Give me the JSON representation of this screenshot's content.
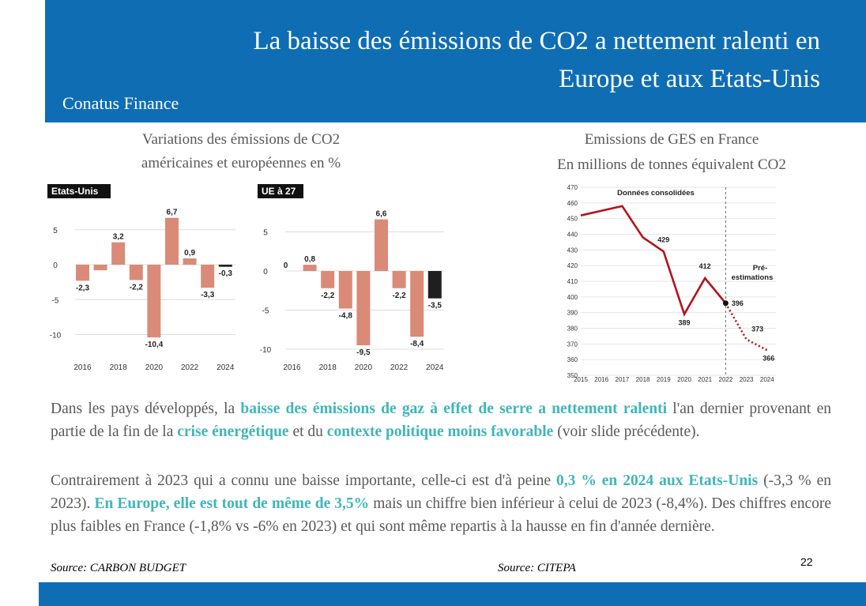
{
  "header": {
    "title": "La baisse des émissions de CO2 a nettement ralenti en Europe et aux Etats-Unis",
    "brand": "Conatus Finance"
  },
  "left_caption": {
    "line1": "Variations des émissions de CO2",
    "line2": "américaines et européennes en %"
  },
  "right_caption": {
    "line1": "Emissions de GES en France",
    "line2": "En millions de tonnes équivalent CO2"
  },
  "body": {
    "p1_a": "Dans les pays développés, la ",
    "p1_b": "baisse des émissions de gaz à effet de serre a nettement ralenti",
    "p1_c": " l'an dernier provenant en partie de la fin de la ",
    "p1_d": "crise énergétique",
    "p1_e": " et du ",
    "p1_f": "contexte politique moins favorable",
    "p1_g": " (voir slide précédente).",
    "p2_a": "Contrairement à 2023 qui a connu une baisse importante, celle-ci est d'à peine ",
    "p2_b": "0,3 % en 2024 aux Etats-Unis",
    "p2_c": " (-3,3 % en 2023). ",
    "p2_d": "En Europe, elle est tout de même de 3,5%",
    "p2_e": " mais un chiffre bien inférieur à celui de 2023 (-8,4%). Des chiffres encore plus faibles en France (-1,8% vs -6% en 2023) et qui sont même repartis à la hausse en fin d'année dernière."
  },
  "source_left": "Source: CARBON BUDGET",
  "source_right": "Source: CITEPA",
  "page_number": "22",
  "colors": {
    "header_bg": "#0f6db4",
    "bar_fill": "#d98b78",
    "bar_last": "#1f1f1f",
    "line_color": "#b5121b",
    "highlight": "#3fb6b9"
  },
  "chart_data": [
    {
      "type": "bar",
      "panel_label": "Etats-Unis",
      "categories": [
        "2016",
        "2017",
        "2018",
        "2019",
        "2020",
        "2021",
        "2022",
        "2023",
        "2024"
      ],
      "tick_labels_x": [
        "2016",
        "2018",
        "2020",
        "2022",
        "2024"
      ],
      "tick_labels_y": [
        "5",
        "0",
        "-5",
        "-10"
      ],
      "values": [
        -2.3,
        -0.8,
        3.2,
        -2.2,
        -10.4,
        6.7,
        0.9,
        -3.3,
        -0.3
      ],
      "data_labels": [
        "-2,3",
        "",
        "3,2",
        "-2,2",
        "-10,4",
        "6,7",
        "0,9",
        "-3,3",
        "-0,3"
      ],
      "ylim": [
        -12,
        8
      ]
    },
    {
      "type": "bar",
      "panel_label": "UE à 27",
      "categories": [
        "2016",
        "2017",
        "2018",
        "2019",
        "2020",
        "2021",
        "2022",
        "2023",
        "2024"
      ],
      "tick_labels_x": [
        "2016",
        "2018",
        "2020",
        "2022",
        "2024"
      ],
      "tick_labels_y": [
        "5",
        "0",
        "-5",
        "-10"
      ],
      "values": [
        0,
        0.8,
        -2.2,
        -4.8,
        -9.5,
        6.6,
        -2.2,
        -8.4,
        -3.5
      ],
      "data_labels": [
        "0",
        "0,8",
        "-2,2",
        "-4,8",
        "-9,5",
        "6,6",
        "-2,2",
        "-8,4",
        "-3,5"
      ],
      "ylim": [
        -11,
        8
      ]
    },
    {
      "type": "line",
      "x": [
        "2015",
        "2016",
        "2017",
        "2018",
        "2019",
        "2020",
        "2021",
        "2022",
        "2023",
        "2024"
      ],
      "y": [
        452,
        455,
        458,
        438,
        429,
        389,
        412,
        396,
        373,
        366
      ],
      "point_labels": {
        "2019": "429",
        "2020": "389",
        "2021": "412",
        "2022": "396",
        "2023": "373",
        "2024": "366"
      },
      "annotations": [
        "Données consolidées",
        "Pré-",
        "estimations"
      ],
      "tick_labels_y": [
        "470",
        "460",
        "450",
        "440",
        "430",
        "420",
        "410",
        "400",
        "390",
        "380",
        "370",
        "360",
        "350"
      ],
      "ylim": [
        350,
        470
      ],
      "consolidated_until": "2022"
    }
  ]
}
